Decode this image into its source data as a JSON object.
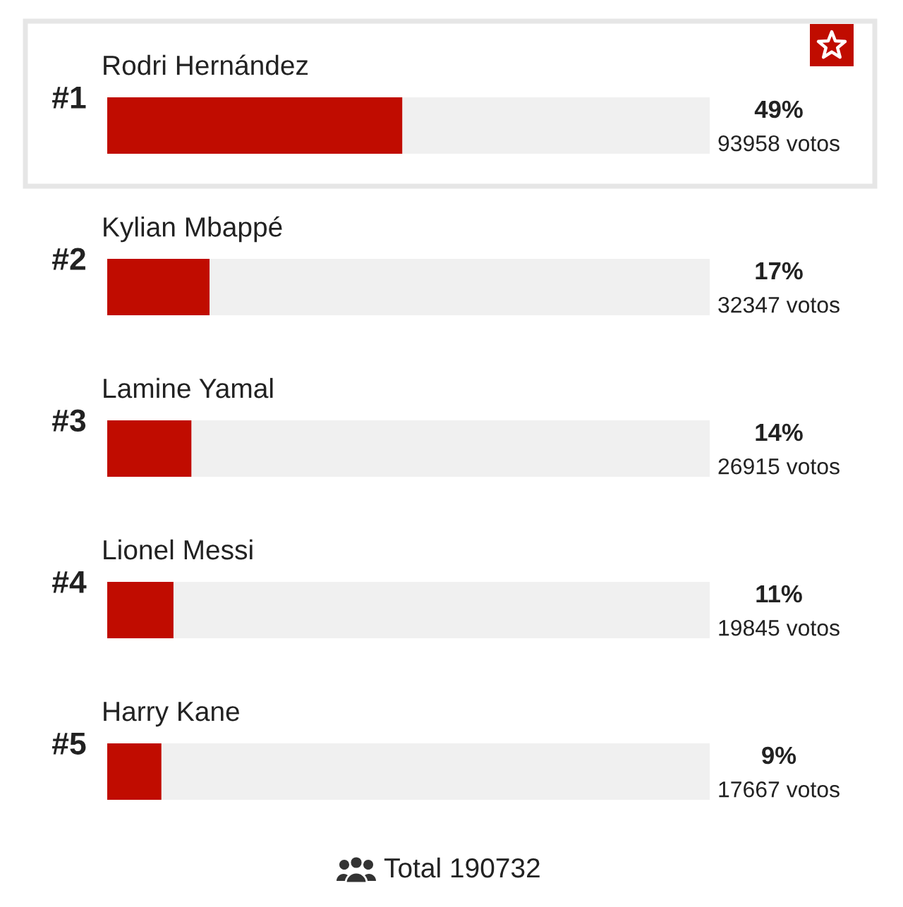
{
  "chart_data": {
    "type": "bar",
    "orientation": "horizontal",
    "stacked": true,
    "categories": [
      "Rodri Hernández",
      "Kylian Mbappé",
      "Lamine Yamal",
      "Lionel Messi",
      "Harry Kane"
    ],
    "series": [
      {
        "color": "#c00c00",
        "values": [
          49,
          17,
          14,
          11,
          9
        ],
        "value_labels": [
          "49%",
          "17%",
          "14%",
          "11%",
          "9%"
        ]
      },
      {
        "color": "#f0f0f0",
        "values": [
          51,
          83,
          86,
          89,
          91
        ]
      }
    ],
    "xlim": [
      0,
      100
    ],
    "tick_labels": "y",
    "annotations": [
      "#1",
      "#2",
      "#3",
      "#4",
      "#5",
      "93958 votos",
      "32347 votos",
      "26915 votos",
      "19845 votos",
      "17667 votos",
      "Total 190732"
    ]
  }
}
